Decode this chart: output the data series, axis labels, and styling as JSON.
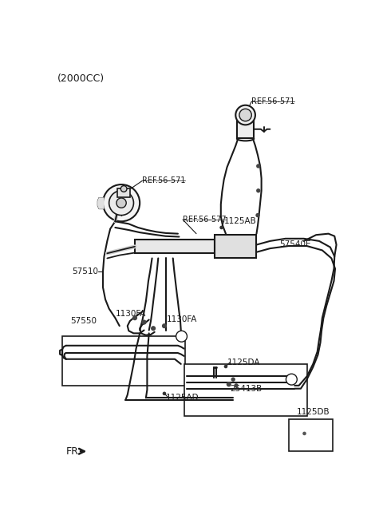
{
  "bg": "#ffffff",
  "lc": "#1a1a1a",
  "tc": "#1a1a1a",
  "title": "(2000CC)",
  "labels": {
    "ref571_top": "REF.56-571",
    "ref571_left": "REF.56-571",
    "ref577": "REF.56-577",
    "l1125AB": "1125AB",
    "l57510": "57510",
    "l57540E": "57540E",
    "l57550": "57550",
    "l1130FA_l": "1130FA",
    "l1130FA_r": "1130FA",
    "l1125DA": "1125DA",
    "l25413B": "25413B",
    "l1125AD": "1125AD",
    "l1125DB": "1125DB",
    "fr": "FR."
  }
}
